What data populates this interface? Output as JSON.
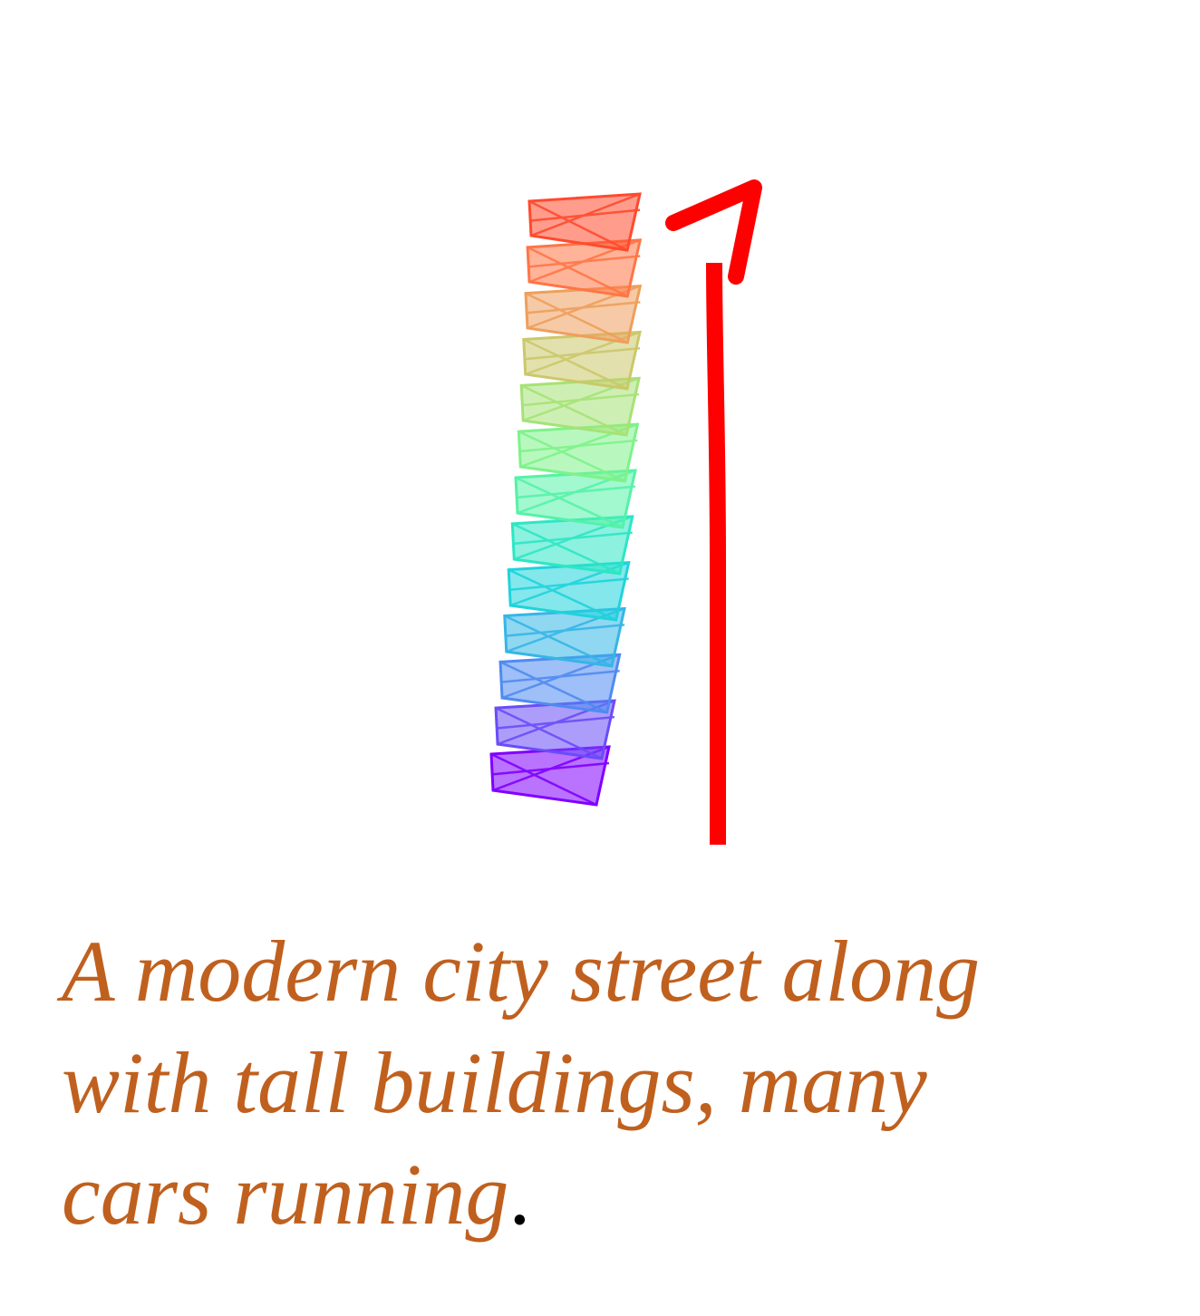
{
  "caption": {
    "text": "A modern city street along\nwith tall buildings, many\ncars running",
    "end_mark": ".",
    "text_color": "#c0601e",
    "end_mark_color": "#000000"
  },
  "camera_trajectory": {
    "frame_count": 13,
    "frame_colors": [
      "#8000ff",
      "#6a4cf8",
      "#4f8bf0",
      "#35b6e6",
      "#1fd3db",
      "#2ee6c4",
      "#55f2a8",
      "#7ef28a",
      "#a6e276",
      "#cbc86a",
      "#ee9f5c",
      "#ff7546",
      "#ff4a2e"
    ]
  },
  "motion_arrow": {
    "direction": "up",
    "color": "#ff0000"
  }
}
